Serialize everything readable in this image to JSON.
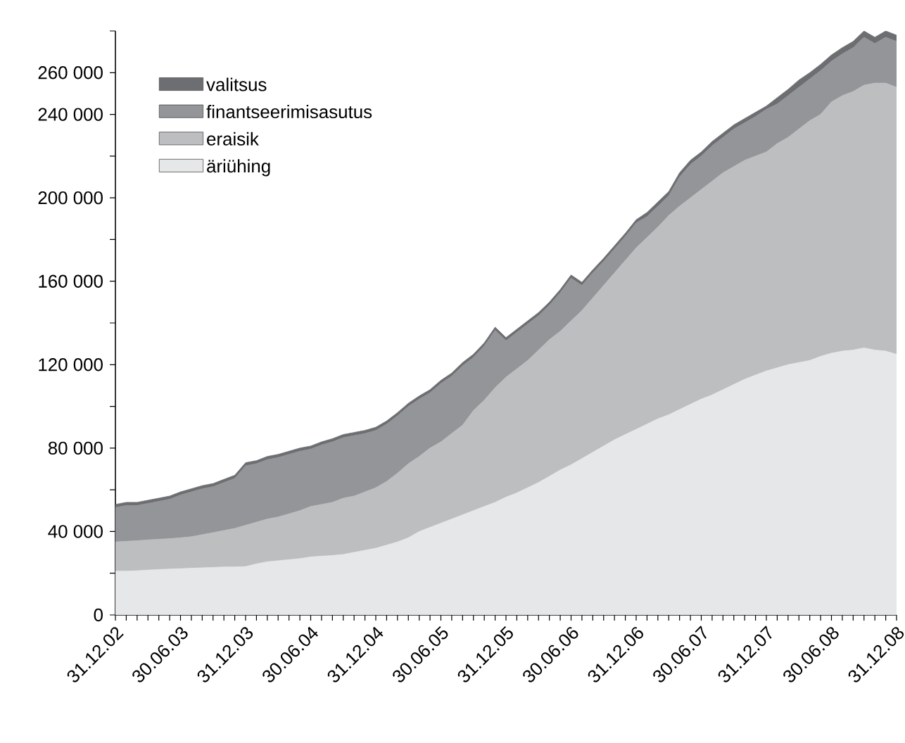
{
  "chart_data": {
    "type": "area",
    "stacked": true,
    "legend": "top left",
    "categories": [
      "31.12.02",
      null,
      null,
      null,
      null,
      null,
      "30.06.03",
      null,
      null,
      null,
      null,
      null,
      "31.12.03",
      null,
      null,
      null,
      null,
      null,
      "30.06.04",
      null,
      null,
      null,
      null,
      null,
      "31.12.04",
      null,
      null,
      null,
      null,
      null,
      "30.06.05",
      null,
      null,
      null,
      null,
      null,
      "31.12.05",
      null,
      null,
      null,
      null,
      null,
      "30.06.06",
      null,
      null,
      null,
      null,
      null,
      "31.12.06",
      null,
      null,
      null,
      null,
      null,
      "30.06.07",
      null,
      null,
      null,
      null,
      null,
      "31.12.07",
      null,
      null,
      null,
      null,
      null,
      "30.06.08",
      null,
      null,
      null,
      null,
      null,
      "31.12.08"
    ],
    "ylim": [
      0,
      280000
    ],
    "yticks": [
      0,
      {
        "value": 40000,
        "label": "40 000"
      },
      {
        "value": 80000,
        "label": "80 000"
      },
      {
        "value": 120000,
        "label": "120 000"
      },
      {
        "value": 160000,
        "label": "160 000"
      },
      {
        "value": 200000,
        "label": "200 000"
      },
      {
        "value": 240000,
        "label": "240 000"
      },
      {
        "value": 260000,
        "label": "260 000"
      },
      {
        "value": 280000,
        "label": null
      }
    ],
    "series": [
      {
        "name": "äriühing",
        "color": "#e6e7e8",
        "values": [
          21000,
          21000,
          21200,
          21500,
          21800,
          22000,
          22200,
          22400,
          22600,
          22800,
          23000,
          23000,
          23200,
          24500,
          25500,
          26000,
          26500,
          27000,
          27800,
          28200,
          28500,
          29000,
          30000,
          31000,
          32000,
          33500,
          35000,
          37000,
          40000,
          42000,
          44000,
          46000,
          48000,
          50000,
          52000,
          54000,
          56500,
          58500,
          61000,
          63500,
          66500,
          69500,
          72000,
          75000,
          78000,
          81000,
          84000,
          86500,
          89000,
          91500,
          94000,
          96000,
          98500,
          101000,
          103500,
          105500,
          108000,
          110500,
          113000,
          115000,
          117000,
          118500,
          120000,
          121000,
          122000,
          124000,
          125500,
          126500,
          127000,
          128000,
          127000,
          126500,
          125000
        ]
      },
      {
        "name": "eraisik",
        "color": "#bcbec0",
        "values": [
          14000,
          14300,
          14400,
          14500,
          14500,
          14600,
          14800,
          15100,
          15900,
          16700,
          17500,
          18500,
          19800,
          20000,
          20500,
          21000,
          22000,
          23000,
          24200,
          24800,
          25500,
          27000,
          27000,
          28000,
          29000,
          30500,
          33000,
          35500,
          36000,
          38000,
          39000,
          41000,
          43000,
          48000,
          51000,
          55000,
          57500,
          59500,
          61000,
          63500,
          65500,
          66500,
          69000,
          71000,
          74000,
          77000,
          80000,
          83500,
          87000,
          89500,
          92000,
          95500,
          97500,
          99000,
          100500,
          102500,
          104000,
          104500,
          105000,
          105000,
          105000,
          107500,
          109000,
          112000,
          115000,
          116000,
          120500,
          122500,
          124000,
          126000,
          128000,
          128500,
          128000
        ]
      },
      {
        "name": "finantseerimisasutus",
        "color": "#939598",
        "values": [
          16500,
          17200,
          16900,
          17500,
          18200,
          18900,
          20500,
          21500,
          22000,
          22000,
          23000,
          24000,
          28500,
          28000,
          28500,
          28500,
          28500,
          28500,
          27500,
          28500,
          29000,
          29000,
          29000,
          28000,
          27500,
          27500,
          27500,
          27500,
          27500,
          26500,
          28000,
          27500,
          28500,
          25500,
          26000,
          27500,
          17500,
          17500,
          17500,
          16500,
          16500,
          18500,
          20500,
          12000,
          12000,
          11500,
          11500,
          11500,
          12000,
          10000,
          10000,
          9500,
          14000,
          16000,
          16000,
          17000,
          17000,
          18000,
          18000,
          19000,
          20500,
          19000,
          20000,
          20000,
          20000,
          21000,
          19500,
          20000,
          21000,
          23000,
          19000,
          22000,
          22000
        ]
      },
      {
        "name": "valitsus",
        "color": "#6d6e71",
        "values": [
          1500,
          1500,
          1500,
          1500,
          1500,
          1500,
          1500,
          1500,
          1500,
          1500,
          1500,
          1500,
          1500,
          1500,
          1500,
          1500,
          1500,
          1500,
          1500,
          1500,
          1500,
          1500,
          1500,
          1500,
          1500,
          1500,
          1500,
          1500,
          1500,
          1500,
          1500,
          1500,
          1500,
          1500,
          1500,
          1500,
          1500,
          1500,
          1500,
          1500,
          1500,
          1500,
          1500,
          1500,
          1500,
          1500,
          1500,
          1500,
          1500,
          2000,
          2000,
          2000,
          2000,
          2000,
          2000,
          2000,
          2000,
          2000,
          2000,
          2000,
          1500,
          3000,
          3000,
          3500,
          3000,
          3000,
          3000,
          3000,
          3000,
          3000,
          3000,
          3000,
          3000
        ]
      }
    ]
  }
}
